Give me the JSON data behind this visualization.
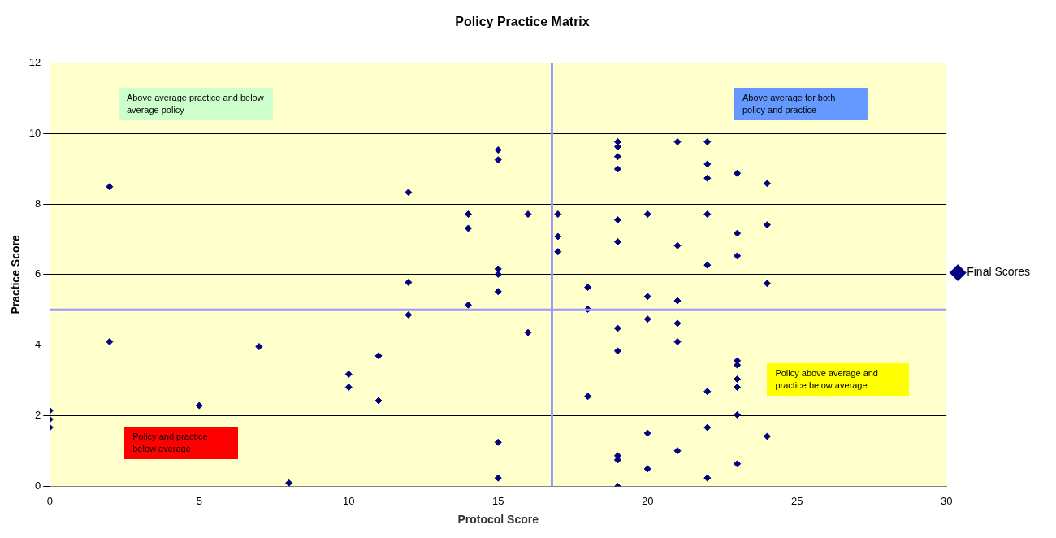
{
  "chart_data": {
    "type": "scatter",
    "title": "Policy Practice Matrix",
    "xlabel": "Protocol Score",
    "ylabel": "Practice Score",
    "series": [
      {
        "name": "Final Scores",
        "color": "#000080",
        "x": [
          0,
          0,
          0,
          2,
          2,
          5,
          7,
          8,
          10,
          10,
          11,
          11,
          12,
          12,
          12,
          14,
          14,
          14,
          15,
          15,
          15,
          15,
          15,
          15,
          15,
          16,
          16,
          17,
          17,
          17,
          18,
          18,
          18,
          19,
          19,
          19,
          19,
          19,
          19,
          19,
          19,
          19,
          19,
          19,
          20,
          20,
          20,
          20,
          20,
          21,
          21,
          21,
          21,
          21,
          21,
          22,
          22,
          22,
          22,
          22,
          22,
          22,
          22,
          23,
          23,
          23,
          23,
          23,
          23,
          23,
          23,
          23,
          24,
          24,
          24,
          24
        ],
        "values": [
          2.15,
          1.9,
          1.67,
          8.49,
          4.1,
          2.29,
          3.96,
          0.1,
          3.18,
          2.81,
          3.7,
          2.43,
          8.33,
          5.78,
          4.86,
          7.71,
          7.31,
          5.14,
          9.53,
          9.25,
          6.16,
          6.01,
          5.52,
          1.25,
          0.24,
          7.71,
          4.36,
          7.71,
          7.08,
          6.65,
          5.64,
          5.02,
          2.55,
          9.76,
          9.62,
          9.34,
          8.99,
          7.55,
          6.93,
          4.48,
          3.84,
          0.87,
          0.75,
          0,
          7.71,
          5.38,
          4.74,
          1.51,
          0.5,
          9.76,
          6.82,
          5.26,
          4.62,
          4.1,
          1.01,
          9.76,
          9.13,
          8.73,
          7.71,
          6.27,
          2.69,
          1.67,
          0.24,
          8.87,
          7.17,
          6.53,
          3.56,
          3.44,
          3.04,
          2.81,
          2.03,
          0.64,
          8.58,
          7.41,
          5.75,
          1.42
        ]
      }
    ],
    "xlim": [
      0,
      30
    ],
    "xticks": [
      0,
      5,
      10,
      15,
      20,
      25,
      30
    ],
    "ylim": [
      0,
      12
    ],
    "yticks": [
      0,
      2,
      4,
      6,
      8,
      10,
      12
    ],
    "ref_lines": [
      {
        "axis": "x",
        "value": 16.8,
        "color": "#9999ff"
      },
      {
        "axis": "y",
        "value": 5,
        "color": "#9999ff"
      }
    ],
    "annotations": [
      "Above average practice and below average policy",
      "Above average for both policy and practice",
      "Policy above average and practice below average",
      "Policy and practice below average"
    ],
    "grid": "y",
    "legend": "right",
    "marker": "diamond"
  }
}
